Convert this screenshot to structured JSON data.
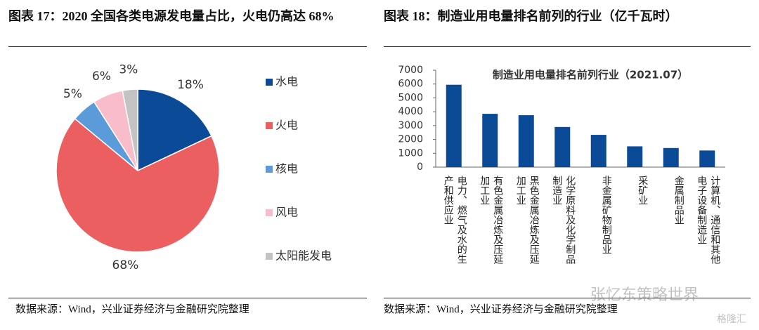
{
  "figures": [
    {
      "caption": "图表 17：2020 全国各类电源发电量占比，火电仍高达 68%",
      "source": "数据来源：Wind，兴业证券经济与金融研究院整理"
    },
    {
      "caption": "图表 18：制造业用电量排名前列的行业（亿千瓦时）",
      "source": "数据来源：Wind，兴业证券经济与金融研究院整理"
    }
  ],
  "watermark": [
    "张忆东策略世界",
    "格隆汇"
  ],
  "chart_data": [
    {
      "type": "pie",
      "categories": [
        "水电",
        "火电",
        "核电",
        "风电",
        "太阳能发电"
      ],
      "values": [
        18,
        68,
        5,
        6,
        3
      ],
      "value_labels": [
        "18%",
        "68%",
        "5%",
        "6%",
        "3%"
      ],
      "colors": [
        "#0b4a96",
        "#ec5f60",
        "#5b9bd9",
        "#f8bccb",
        "#c3c3c3"
      ],
      "legend": "right"
    },
    {
      "type": "bar",
      "title": "制造业用电量排名前列行业（2021.07）",
      "categories": [
        "电力、燃气及水的生产和供应业",
        "有色金属冶炼及压延加工业",
        "黑色金属冶炼及压延加工业",
        "化学原料及化学制品制造业",
        "非金属矿物制品业",
        "采矿业",
        "金属制品业",
        "计算机、通信和其他电子设备制造业"
      ],
      "values": [
        5950,
        3850,
        3750,
        2900,
        2330,
        1500,
        1380,
        1200
      ],
      "color": "#0b4a96",
      "ylim": [
        0,
        7000
      ],
      "yticks": [
        0,
        1000,
        2000,
        3000,
        4000,
        5000,
        6000,
        7000
      ],
      "grid": false
    }
  ]
}
